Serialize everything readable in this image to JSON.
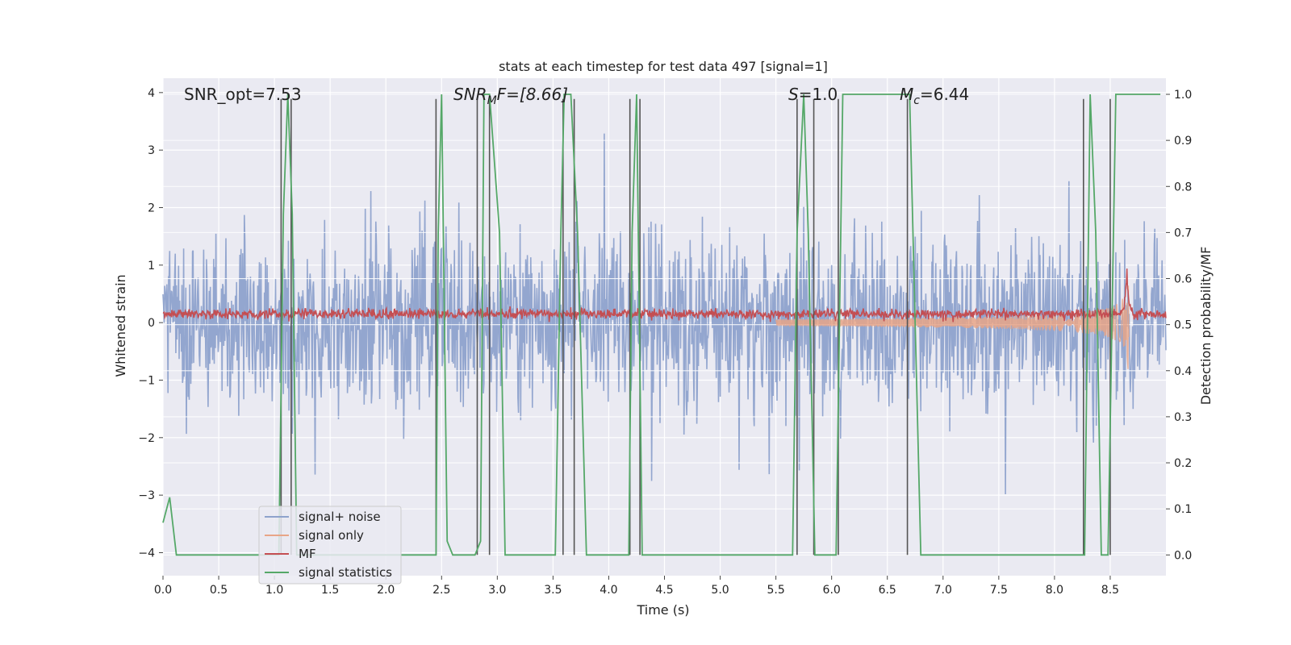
{
  "chart_data": {
    "type": "line",
    "title": "stats at each timestep for test data 497 [signal=1]",
    "xlabel": "Time (s)",
    "ylabel_left": "Whitened strain",
    "ylabel_right": "Detection probability/MF",
    "xlim": [
      0,
      9.0
    ],
    "ylim_left": [
      -4.4,
      4.25
    ],
    "ylim_right": [
      -0.045,
      1.035
    ],
    "xticks": [
      "0.0",
      "0.5",
      "1.0",
      "1.5",
      "2.0",
      "2.5",
      "3.0",
      "3.5",
      "4.0",
      "4.5",
      "5.0",
      "5.5",
      "6.0",
      "6.5",
      "7.0",
      "7.5",
      "8.0",
      "8.5"
    ],
    "yticks_left": [
      "4",
      "3",
      "2",
      "1",
      "0",
      "−1",
      "−2",
      "−3",
      "−4"
    ],
    "yticks_right": [
      "1.0",
      "0.9",
      "0.8",
      "0.7",
      "0.6",
      "0.5",
      "0.4",
      "0.3",
      "0.2",
      "0.1",
      "0.0"
    ],
    "grid": true,
    "legend_position": "lower-left",
    "annotations": {
      "snr_opt": "SNR_opt=7.53",
      "snr_mf_sym": "SNR",
      "snr_mf_sub": "M",
      "snr_mf_rest": "F=[8.66]",
      "s_sym": "S",
      "s_rest": "=1.0",
      "mc_sym": "M",
      "mc_sub": "c",
      "mc_rest": "=6.44"
    },
    "series": [
      {
        "name": "signal+ noise",
        "color": "#8ea2cc",
        "kind": "noise",
        "axis": "left",
        "amplitude_range": [
          -3.3,
          3.5
        ]
      },
      {
        "name": "signal only",
        "color": "#e8a587",
        "kind": "chirp",
        "axis": "left",
        "x_range": [
          5.5,
          8.67
        ],
        "peak": 0.95
      },
      {
        "name": "MF",
        "color": "#c44e52",
        "kind": "noise",
        "axis": "left",
        "baseline": 0.15,
        "spike_x": 8.65,
        "spike_y": 1.0
      },
      {
        "name": "signal statistics",
        "color": "#55a868",
        "axis": "right",
        "x": [
          0.0,
          0.06,
          0.12,
          0.96,
          1.04,
          1.08,
          1.12,
          1.16,
          1.2,
          2.45,
          2.47,
          2.5,
          2.55,
          2.6,
          2.65,
          2.8,
          2.85,
          2.88,
          2.9,
          2.93,
          3.02,
          3.07,
          3.52,
          3.57,
          3.6,
          3.66,
          3.72,
          3.8,
          4.18,
          4.21,
          4.25,
          4.3,
          5.65,
          5.69,
          5.75,
          5.79,
          5.85,
          6.04,
          6.1,
          6.15,
          6.65,
          6.7,
          6.8,
          8.2,
          8.27,
          8.32,
          8.37,
          8.42,
          8.48,
          8.55,
          8.95
        ],
        "values": [
          0.07,
          0.125,
          0.0,
          0.0,
          0.0,
          0.74,
          1.0,
          0.74,
          0.0,
          0.0,
          0.7,
          1.0,
          0.03,
          0.0,
          0.0,
          0.0,
          0.03,
          1.0,
          1.0,
          1.0,
          0.7,
          0.0,
          0.0,
          0.7,
          1.0,
          1.0,
          0.7,
          0.0,
          0.0,
          0.7,
          1.0,
          0.0,
          0.0,
          0.7,
          1.0,
          0.7,
          0.0,
          0.0,
          1.0,
          1.0,
          1.0,
          1.0,
          0.0,
          0.0,
          0.0,
          1.0,
          0.7,
          0.0,
          0.0,
          1.0,
          1.0
        ]
      },
      {
        "name": "detection markers",
        "color": "#555555",
        "kind": "vlines",
        "axis": "right",
        "x": [
          1.06,
          1.15,
          2.45,
          2.82,
          2.93,
          3.59,
          3.69,
          4.19,
          4.28,
          5.69,
          5.84,
          6.06,
          6.68,
          8.26,
          8.5
        ],
        "tops": [
          0.99,
          0.99,
          0.99,
          0.99,
          0.99,
          0.99,
          0.99,
          0.99,
          0.99,
          0.99,
          0.99,
          0.99,
          0.99,
          0.99,
          0.99
        ]
      }
    ]
  }
}
